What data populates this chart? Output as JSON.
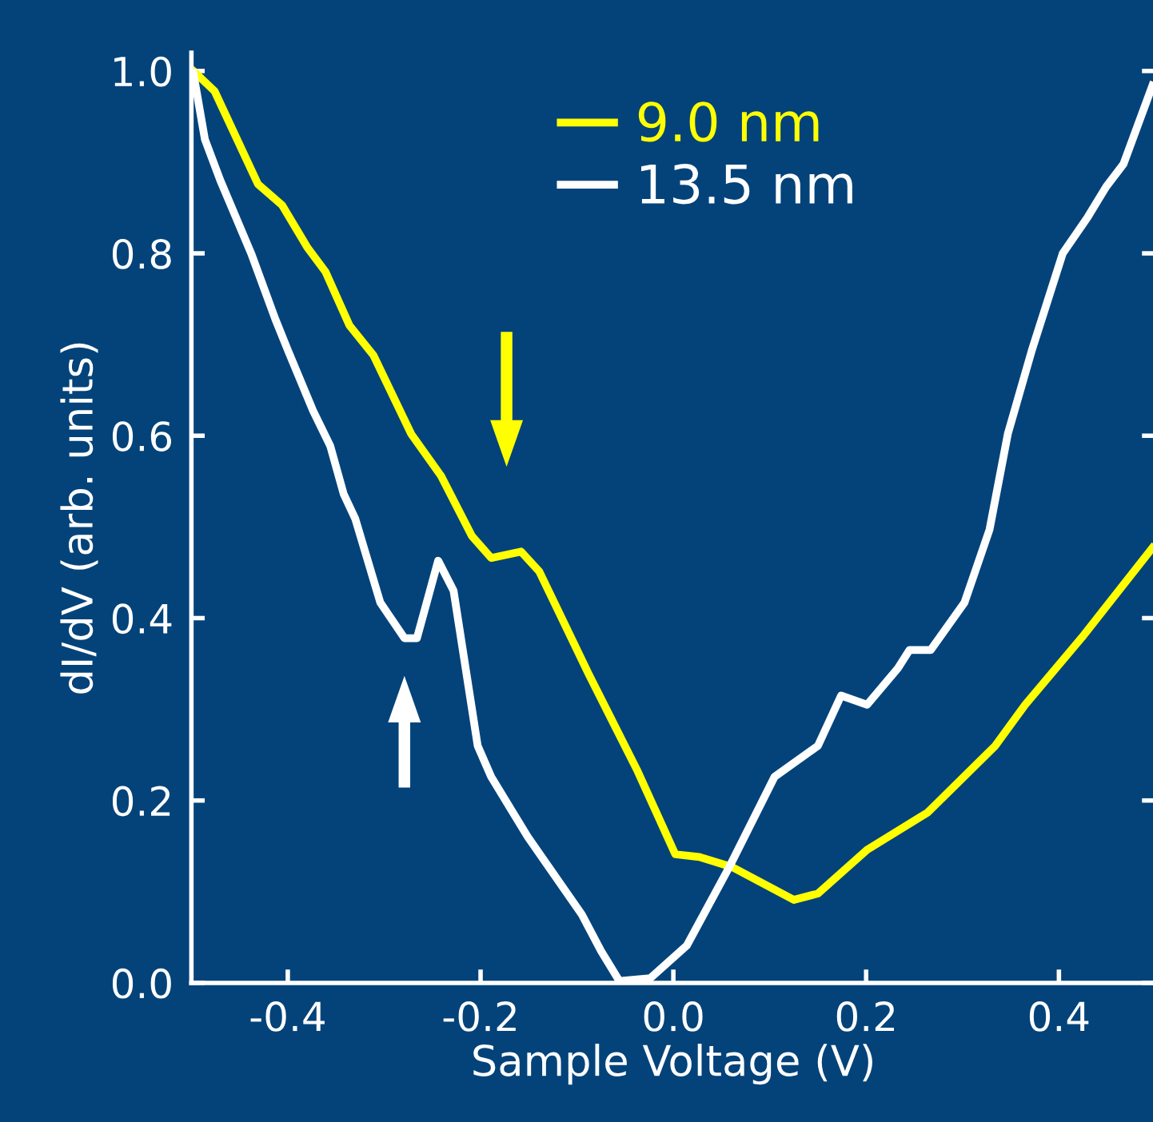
{
  "chart_data": {
    "type": "line",
    "xlabel": "Sample Voltage (V)",
    "ylabel": "dI/dV (arb. units)",
    "xlim": [
      -0.5,
      0.5
    ],
    "ylim": [
      0,
      1.02
    ],
    "xticks": [
      {
        "value": -0.4,
        "label": "-0.4"
      },
      {
        "value": -0.2,
        "label": "-0.2"
      },
      {
        "value": 0,
        "label": "0.0"
      },
      {
        "value": 0.2,
        "label": "0.2"
      },
      {
        "value": 0.4,
        "label": "0.4"
      }
    ],
    "yticks": [
      {
        "value": 0,
        "label": "0.0"
      },
      {
        "value": 0.2,
        "label": "0.2"
      },
      {
        "value": 0.4,
        "label": "0.4"
      },
      {
        "value": 0.6,
        "label": "0.6"
      },
      {
        "value": 0.8,
        "label": "0.8"
      },
      {
        "value": 1,
        "label": "1.0"
      }
    ],
    "grid": false,
    "legend": "top right",
    "marker": "none",
    "line_style": "solid",
    "series": [
      {
        "name": "9.0 nm",
        "color": "#ffff00",
        "x": [
          -0.498,
          -0.476,
          -0.431,
          -0.406,
          -0.38,
          -0.361,
          -0.336,
          -0.311,
          -0.272,
          -0.241,
          -0.209,
          -0.189,
          -0.158,
          -0.139,
          -0.088,
          -0.037,
          0.002,
          0.027,
          0.061,
          0.125,
          0.15,
          0.201,
          0.264,
          0.334,
          0.365,
          0.424,
          0.497
        ],
        "values": [
          1.0,
          0.978,
          0.876,
          0.853,
          0.807,
          0.78,
          0.721,
          0.688,
          0.602,
          0.556,
          0.49,
          0.466,
          0.473,
          0.451,
          0.339,
          0.232,
          0.141,
          0.138,
          0.127,
          0.091,
          0.098,
          0.146,
          0.187,
          0.26,
          0.305,
          0.379,
          0.477
        ]
      },
      {
        "name": "13.5 nm",
        "color": "#ffffff",
        "x": [
          -0.498,
          -0.486,
          -0.47,
          -0.438,
          -0.413,
          -0.4,
          -0.374,
          -0.356,
          -0.342,
          -0.33,
          -0.304,
          -0.279,
          -0.266,
          -0.244,
          -0.228,
          -0.203,
          -0.189,
          -0.151,
          -0.095,
          -0.075,
          -0.056,
          -0.024,
          0.014,
          0.058,
          0.105,
          0.15,
          0.174,
          0.201,
          0.233,
          0.245,
          0.267,
          0.302,
          0.328,
          0.347,
          0.372,
          0.404,
          0.43,
          0.449,
          0.467,
          0.497
        ],
        "values": [
          0.998,
          0.925,
          0.88,
          0.8,
          0.728,
          0.694,
          0.628,
          0.589,
          0.536,
          0.509,
          0.417,
          0.378,
          0.378,
          0.463,
          0.43,
          0.26,
          0.226,
          0.16,
          0.075,
          0.035,
          0.002,
          0.005,
          0.041,
          0.127,
          0.226,
          0.26,
          0.315,
          0.305,
          0.345,
          0.365,
          0.365,
          0.417,
          0.497,
          0.602,
          0.694,
          0.8,
          0.84,
          0.873,
          0.898,
          0.984
        ]
      }
    ]
  }
}
